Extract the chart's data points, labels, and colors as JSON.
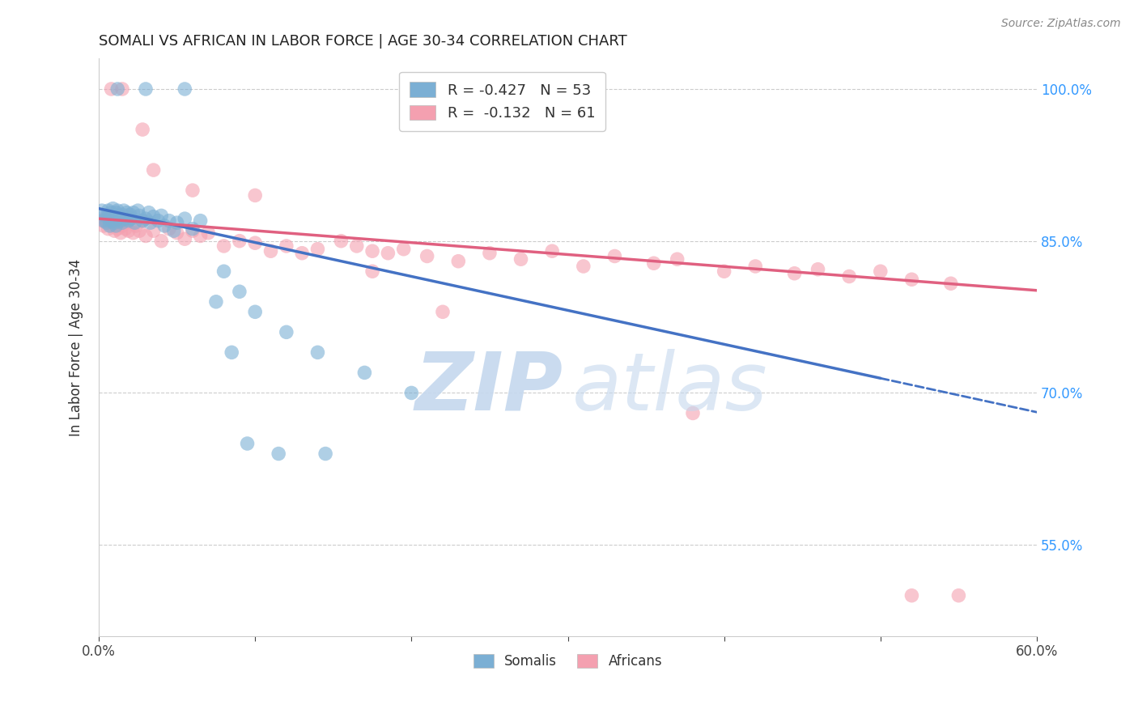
{
  "title": "SOMALI VS AFRICAN IN LABOR FORCE | AGE 30-34 CORRELATION CHART",
  "source": "Source: ZipAtlas.com",
  "ylabel_label": "In Labor Force | Age 30-34",
  "xlim": [
    0.0,
    0.6
  ],
  "ylim": [
    0.46,
    1.03
  ],
  "ytick_positions": [
    0.55,
    0.7,
    0.85,
    1.0
  ],
  "yticklabels": [
    "55.0%",
    "70.0%",
    "85.0%",
    "100.0%"
  ],
  "blue_scatter_color": "#7BAFD4",
  "pink_scatter_color": "#F4A0B0",
  "blue_line_color": "#4472C4",
  "pink_line_color": "#E06080",
  "background_color": "#FFFFFF",
  "grid_color": "#CCCCCC",
  "watermark_color": "#C5D8EE",
  "legend_blue_label": "R = -0.427   N = 53",
  "legend_pink_label": "R =  -0.132   N = 61",
  "legend_label_somalis": "Somalis",
  "legend_label_africans": "Africans",
  "blue_intercept": 0.882,
  "blue_slope": -0.335,
  "pink_intercept": 0.872,
  "pink_slope": -0.118,
  "somali_x": [
    0.002,
    0.003,
    0.004,
    0.005,
    0.006,
    0.006,
    0.007,
    0.007,
    0.008,
    0.008,
    0.009,
    0.009,
    0.01,
    0.01,
    0.011,
    0.011,
    0.012,
    0.012,
    0.013,
    0.014,
    0.015,
    0.015,
    0.016,
    0.017,
    0.018,
    0.019,
    0.02,
    0.021,
    0.022,
    0.023,
    0.025,
    0.026,
    0.028,
    0.03,
    0.032,
    0.033,
    0.035,
    0.038,
    0.04,
    0.042,
    0.045,
    0.048,
    0.05,
    0.055,
    0.06,
    0.065,
    0.08,
    0.09,
    0.1,
    0.12,
    0.14,
    0.17,
    0.2
  ],
  "somali_y": [
    0.88,
    0.87,
    0.875,
    0.868,
    0.88,
    0.875,
    0.87,
    0.865,
    0.878,
    0.872,
    0.882,
    0.87,
    0.875,
    0.868,
    0.878,
    0.865,
    0.88,
    0.872,
    0.875,
    0.87,
    0.876,
    0.868,
    0.88,
    0.872,
    0.878,
    0.87,
    0.876,
    0.872,
    0.878,
    0.868,
    0.88,
    0.875,
    0.87,
    0.872,
    0.878,
    0.868,
    0.874,
    0.87,
    0.875,
    0.865,
    0.87,
    0.86,
    0.868,
    0.872,
    0.862,
    0.87,
    0.82,
    0.8,
    0.78,
    0.76,
    0.74,
    0.72,
    0.7
  ],
  "african_x": [
    0.002,
    0.003,
    0.004,
    0.005,
    0.006,
    0.007,
    0.008,
    0.009,
    0.01,
    0.011,
    0.012,
    0.013,
    0.014,
    0.015,
    0.016,
    0.017,
    0.018,
    0.019,
    0.02,
    0.022,
    0.024,
    0.026,
    0.028,
    0.03,
    0.035,
    0.04,
    0.045,
    0.05,
    0.055,
    0.06,
    0.065,
    0.07,
    0.08,
    0.09,
    0.1,
    0.11,
    0.12,
    0.13,
    0.14,
    0.155,
    0.165,
    0.175,
    0.185,
    0.195,
    0.21,
    0.23,
    0.25,
    0.27,
    0.29,
    0.31,
    0.33,
    0.355,
    0.37,
    0.4,
    0.42,
    0.445,
    0.46,
    0.48,
    0.5,
    0.52,
    0.545
  ],
  "african_y": [
    0.87,
    0.865,
    0.872,
    0.868,
    0.862,
    0.875,
    0.865,
    0.87,
    0.86,
    0.868,
    0.862,
    0.87,
    0.858,
    0.865,
    0.87,
    0.862,
    0.868,
    0.86,
    0.872,
    0.858,
    0.865,
    0.86,
    0.87,
    0.855,
    0.86,
    0.85,
    0.862,
    0.858,
    0.852,
    0.86,
    0.855,
    0.858,
    0.845,
    0.85,
    0.848,
    0.84,
    0.845,
    0.838,
    0.842,
    0.85,
    0.845,
    0.84,
    0.838,
    0.842,
    0.835,
    0.83,
    0.838,
    0.832,
    0.84,
    0.825,
    0.835,
    0.828,
    0.832,
    0.82,
    0.825,
    0.818,
    0.822,
    0.815,
    0.82,
    0.812,
    0.808
  ],
  "african_outlier_x": [
    0.008,
    0.015,
    0.028,
    0.035,
    0.06,
    0.1,
    0.175,
    0.22,
    0.38,
    0.52,
    0.55
  ],
  "african_outlier_y": [
    1.0,
    1.0,
    0.96,
    0.92,
    0.9,
    0.895,
    0.82,
    0.78,
    0.68,
    0.5,
    0.5
  ],
  "somali_outlier_x": [
    0.012,
    0.03,
    0.055,
    0.075,
    0.085,
    0.095,
    0.115,
    0.145
  ],
  "somali_outlier_y": [
    1.0,
    1.0,
    1.0,
    0.79,
    0.74,
    0.65,
    0.64,
    0.64
  ]
}
